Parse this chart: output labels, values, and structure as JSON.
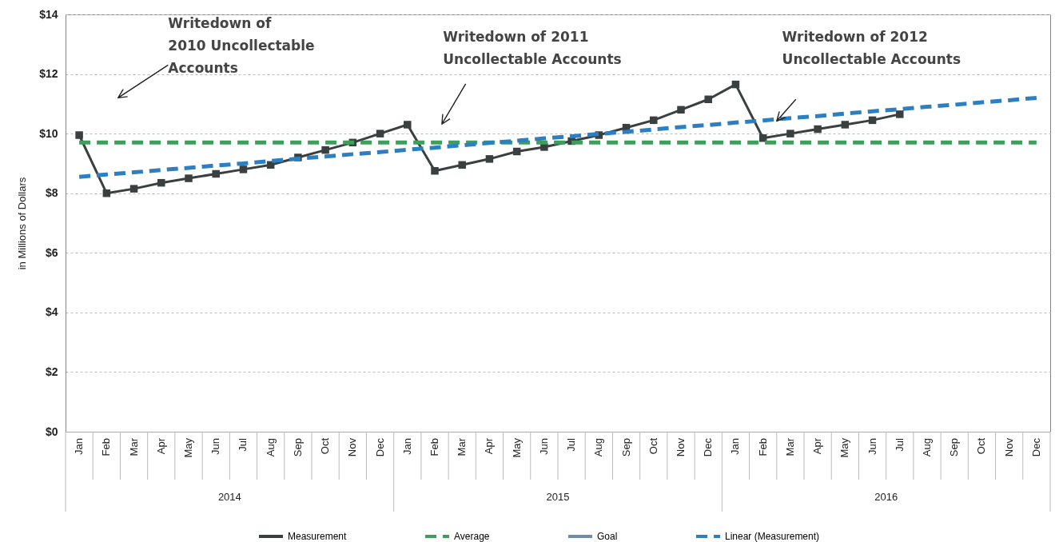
{
  "chart_data": {
    "type": "line",
    "categories": [
      "Jan",
      "Feb",
      "Mar",
      "Apr",
      "May",
      "Jun",
      "Jul",
      "Aug",
      "Sep",
      "Oct",
      "Nov",
      "Dec",
      "Jan",
      "Feb",
      "Mar",
      "Apr",
      "May",
      "Jun",
      "Jul",
      "Aug",
      "Sep",
      "Oct",
      "Nov",
      "Dec",
      "Jan",
      "Feb",
      "Mar",
      "Apr",
      "May",
      "Jun",
      "Jul",
      "Aug",
      "Sep",
      "Oct",
      "Nov",
      "Dec"
    ],
    "series": [
      {
        "name": "Measurement",
        "color": "#3a3f3f",
        "marker": "square",
        "line_style": "solid",
        "values": [
          9.95,
          8.0,
          8.15,
          8.35,
          8.5,
          8.65,
          8.8,
          8.95,
          9.2,
          9.45,
          9.7,
          10.0,
          10.3,
          8.75,
          8.95,
          9.15,
          9.4,
          9.55,
          9.75,
          9.95,
          10.2,
          10.45,
          10.8,
          11.15,
          11.65,
          9.85,
          10.0,
          10.15,
          10.3,
          10.45,
          10.65,
          null,
          null,
          null,
          null,
          null
        ]
      },
      {
        "name": "Average",
        "color": "#3f9e5c",
        "marker": "none",
        "line_style": "dashed",
        "values": [
          9.7,
          9.7,
          9.7,
          9.7,
          9.7,
          9.7,
          9.7,
          9.7,
          9.7,
          9.7,
          9.7,
          9.7,
          9.7,
          9.7,
          9.7,
          9.7,
          9.7,
          9.7,
          9.7,
          9.7,
          9.7,
          9.7,
          9.7,
          9.7,
          9.7,
          9.7,
          9.7,
          9.7,
          9.7,
          9.7,
          9.7,
          9.7,
          9.7,
          9.7,
          9.7,
          9.7
        ]
      },
      {
        "name": "Goal",
        "color": "#6f8ca8",
        "marker": "none",
        "line_style": "solid",
        "values": [
          null,
          null,
          null,
          null,
          null,
          null,
          null,
          null,
          null,
          null,
          null,
          null,
          null,
          null,
          null,
          null,
          null,
          null,
          null,
          null,
          null,
          null,
          null,
          null,
          null,
          null,
          null,
          null,
          null,
          null,
          null,
          null,
          null,
          null,
          null,
          null
        ]
      },
      {
        "name": "Linear (Measurement)",
        "color": "#2e7fc1",
        "marker": "none",
        "line_style": "dashed",
        "values": [
          8.55,
          8.63,
          8.7,
          8.78,
          8.85,
          8.93,
          9.0,
          9.08,
          9.16,
          9.23,
          9.31,
          9.38,
          9.46,
          9.53,
          9.61,
          9.69,
          9.76,
          9.84,
          9.91,
          9.99,
          10.06,
          10.14,
          10.22,
          10.29,
          10.37,
          10.44,
          10.52,
          10.59,
          10.67,
          10.75,
          10.82,
          10.9,
          10.97,
          11.05,
          11.12,
          11.2
        ]
      }
    ],
    "ylim": [
      0,
      14
    ],
    "yticks": [
      {
        "value": 0,
        "label": "$0"
      },
      {
        "value": 2,
        "label": "$2"
      },
      {
        "value": 4,
        "label": "$4"
      },
      {
        "value": 6,
        "label": "$6"
      },
      {
        "value": 8,
        "label": "$8"
      },
      {
        "value": 10,
        "label": "$10"
      },
      {
        "value": 12,
        "label": "$12"
      },
      {
        "value": 14,
        "label": "$14"
      }
    ],
    "ylabel": "in Millions of Dollars",
    "annotations": [
      "Writedown of\n2010 Uncollectable\nAccounts",
      "Writedown of 2011\nUncollectable Accounts",
      "Writedown of 2012\nUncollectable Accounts",
      "2014",
      "2015",
      "2016"
    ],
    "grid": "y",
    "legend": "bottom"
  }
}
